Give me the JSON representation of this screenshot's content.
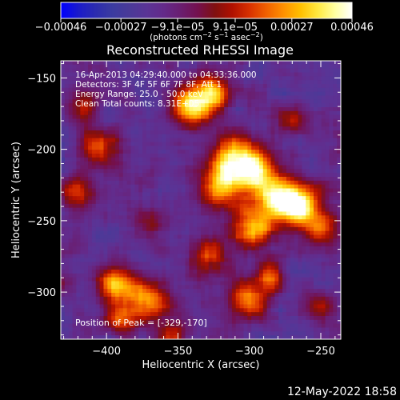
{
  "chart_data": {
    "type": "heatmap",
    "title": "Reconstructed RHESSI Image",
    "xlabel": "Heliocentric X (arcsec)",
    "ylabel": "Heliocentric Y (arcsec)",
    "xlim": [
      -432,
      -236
    ],
    "ylim": [
      -333,
      -138
    ],
    "x_ticks": [
      -400,
      -350,
      -300,
      -250
    ],
    "x_tick_labels": [
      "−400",
      "−350",
      "−300",
      "−250"
    ],
    "y_ticks": [
      -300,
      -250,
      -200,
      -150
    ],
    "y_tick_labels": [
      "−300",
      "−250",
      "−200",
      "−150"
    ],
    "colorbar": {
      "range": [
        -0.00046,
        0.00046
      ],
      "ticks": [
        -0.00046,
        -0.00027,
        -9.1e-05,
        9.1e-05,
        0.00027,
        0.00046
      ],
      "tick_labels": [
        "−0.00046",
        "−0.00027",
        "−9.1e−05",
        "9.1e−05",
        "0.00027",
        "0.00046"
      ],
      "units_main": "(photons cm",
      "units_sup1": "−2",
      "units_mid": " s",
      "units_sup2": "−1",
      "units_end": " asec",
      "units_sup3": "−2",
      "units_close": ")",
      "colormap": [
        "#0000ff",
        "#1a1acc",
        "#2b2bb0",
        "#3b3ba0",
        "#4a3a98",
        "#5a3496",
        "#642a8a",
        "#6a1e70",
        "#74104e",
        "#801010",
        "#b01000",
        "#d83000",
        "#f06000",
        "#ff9000",
        "#ffc000",
        "#ffe840",
        "#ffffa0",
        "#ffffff"
      ]
    },
    "sources": [
      {
        "x": -340,
        "y": -170,
        "amp": 1.0,
        "sigma": 10
      },
      {
        "x": -325,
        "y": -160,
        "amp": 0.7,
        "sigma": 8
      },
      {
        "x": -310,
        "y": -205,
        "amp": 0.9,
        "sigma": 11
      },
      {
        "x": -295,
        "y": -215,
        "amp": 0.85,
        "sigma": 10
      },
      {
        "x": -320,
        "y": -225,
        "amp": 0.8,
        "sigma": 10
      },
      {
        "x": -280,
        "y": -235,
        "amp": 0.9,
        "sigma": 12
      },
      {
        "x": -265,
        "y": -240,
        "amp": 0.8,
        "sigma": 10
      },
      {
        "x": -300,
        "y": -255,
        "amp": 0.75,
        "sigma": 11
      },
      {
        "x": -250,
        "y": -255,
        "amp": 0.6,
        "sigma": 9
      },
      {
        "x": -330,
        "y": -275,
        "amp": 0.55,
        "sigma": 9
      },
      {
        "x": -395,
        "y": -295,
        "amp": 0.85,
        "sigma": 9
      },
      {
        "x": -370,
        "y": -305,
        "amp": 0.8,
        "sigma": 10
      },
      {
        "x": -390,
        "y": -320,
        "amp": 0.6,
        "sigma": 8
      },
      {
        "x": -300,
        "y": -305,
        "amp": 0.7,
        "sigma": 10
      },
      {
        "x": -285,
        "y": -290,
        "amp": 0.6,
        "sigma": 8
      },
      {
        "x": -405,
        "y": -200,
        "amp": 0.6,
        "sigma": 9
      },
      {
        "x": -420,
        "y": -230,
        "amp": 0.55,
        "sigma": 9
      },
      {
        "x": -415,
        "y": -170,
        "amp": 0.5,
        "sigma": 8
      },
      {
        "x": -270,
        "y": -180,
        "amp": 0.45,
        "sigma": 8
      },
      {
        "x": -250,
        "y": -310,
        "amp": 0.4,
        "sigma": 8
      },
      {
        "x": -370,
        "y": -250,
        "amp": 0.35,
        "sigma": 7
      },
      {
        "x": -355,
        "y": -330,
        "amp": 0.5,
        "sigma": 7
      }
    ],
    "noise_amp": 0.45,
    "peak_position": [
      -329,
      -170
    ]
  },
  "annotations": {
    "time_range": "16-Apr-2013 04:29:40.000 to 04:33:36.000",
    "detectors": "Detectors: 3F 4F 5F 6F 7F 8F, Att 1",
    "energy": "Energy Range: 25.0 - 50.0 keV",
    "clean": "Clean    Total counts: 8.31E+05",
    "peak": "Position of Peak = [-329,-170]"
  },
  "footer": {
    "timestamp": "12-May-2022 18:58"
  }
}
